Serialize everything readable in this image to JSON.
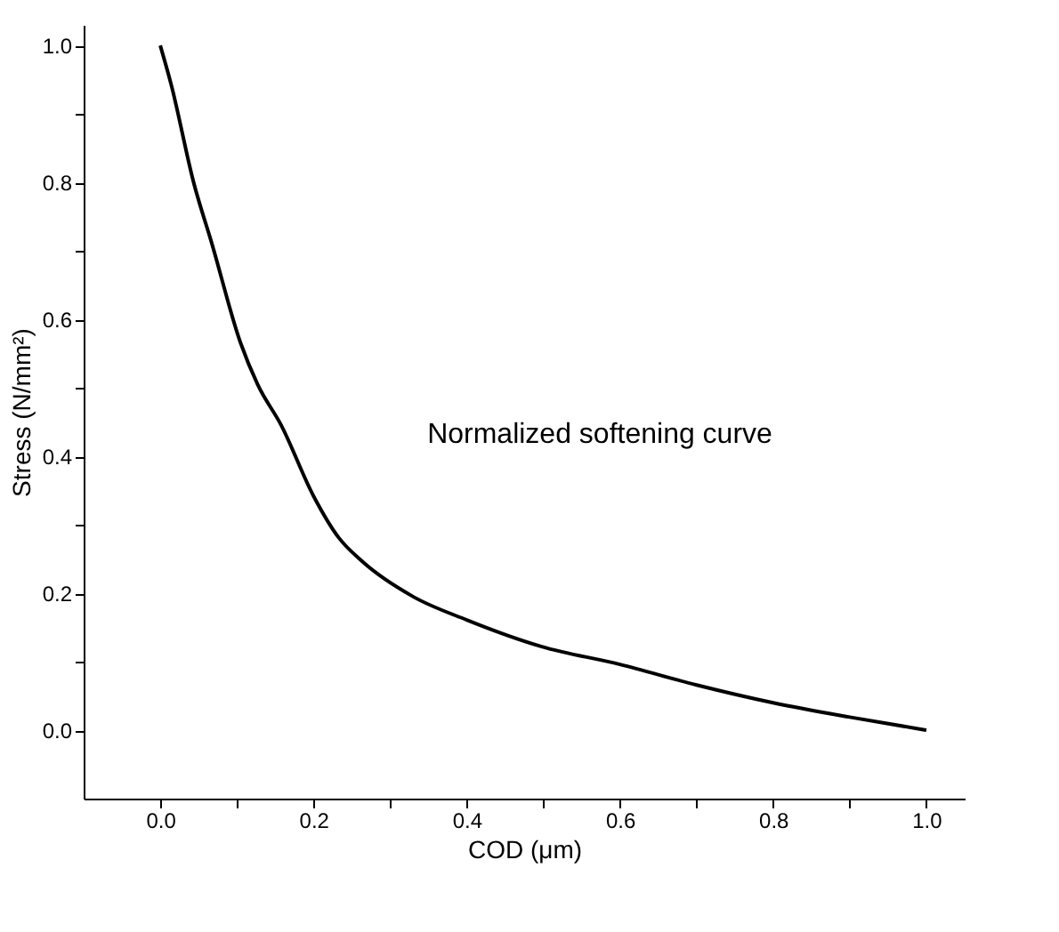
{
  "chart_data": {
    "type": "line",
    "xlabel": "COD (μm)",
    "ylabel": "Stress (N/mm²)",
    "x": [
      0,
      0.014,
      0.044,
      0.067,
      0.105,
      0.127,
      0.158,
      0.2,
      0.233,
      0.263,
      0.33,
      0.4,
      0.498,
      0.6,
      0.7,
      0.8,
      0.9,
      1.0
    ],
    "series": [
      {
        "color": "#000000",
        "values": [
          1.0,
          0.944,
          0.798,
          0.712,
          0.565,
          0.505,
          0.445,
          0.342,
          0.281,
          0.247,
          0.195,
          0.161,
          0.122,
          0.096,
          0.066,
          0.04,
          0.019,
          0.0
        ]
      }
    ],
    "xlim": [
      -0.1,
      1.05
    ],
    "ylim": [
      -0.1,
      1.03
    ],
    "xticks": [
      {
        "value": 0,
        "label": "0.0"
      },
      {
        "value": 0.1,
        "label": null
      },
      0.2,
      {
        "value": 0.3,
        "label": null
      },
      0.4,
      {
        "value": 0.5,
        "label": null
      },
      0.6,
      {
        "value": 0.7,
        "label": null
      },
      0.8,
      {
        "value": 0.9,
        "label": null
      },
      {
        "value": 1,
        "label": "1.0"
      }
    ],
    "yticks": [
      {
        "value": 0,
        "label": "0.0"
      },
      {
        "value": 0.1,
        "label": null
      },
      0.2,
      {
        "value": 0.3,
        "label": null
      },
      0.4,
      {
        "value": 0.5,
        "label": null
      },
      0.6,
      {
        "value": 0.7,
        "label": null
      },
      0.8,
      {
        "value": 0.9,
        "label": null
      },
      {
        "value": 1,
        "label": "1.0"
      }
    ],
    "annotations": [
      "Normalized softening curve"
    ],
    "grid": false,
    "marker": "none",
    "line_style": "solid"
  }
}
